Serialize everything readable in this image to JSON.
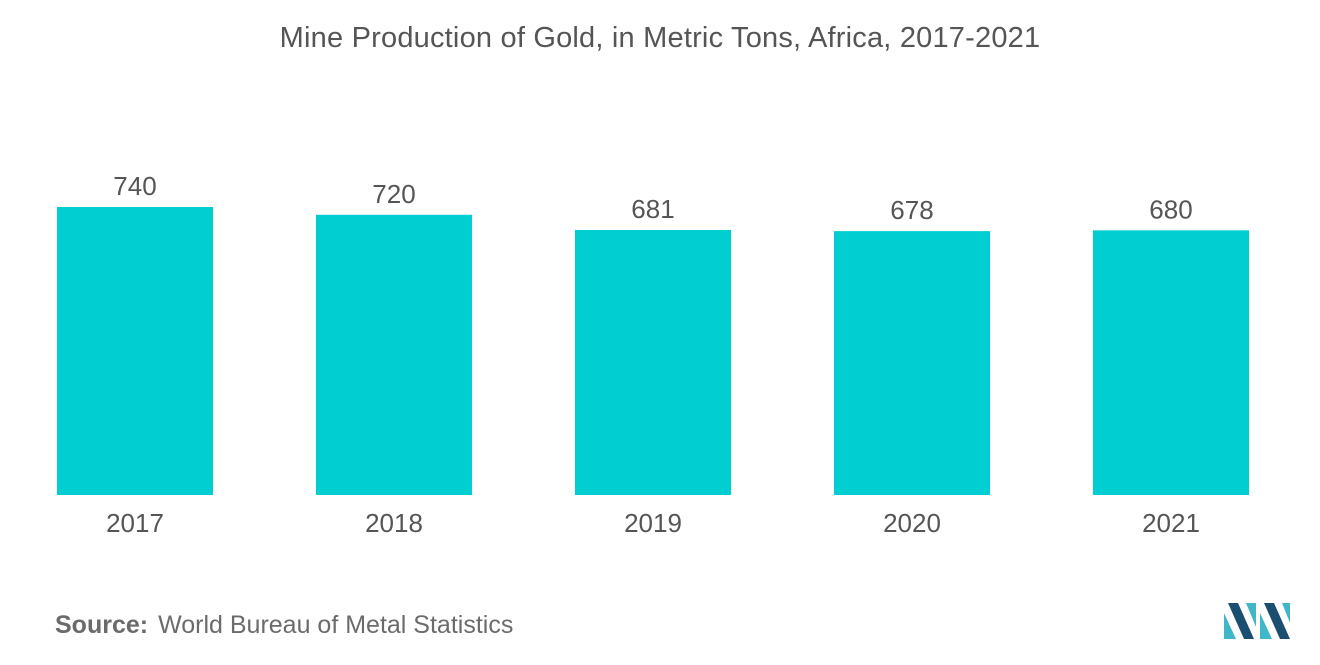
{
  "title": "Mine Production of Gold, in Metric Tons, Africa, 2017-2021",
  "source": {
    "label": "Source:",
    "text": "World Bureau of Metal Statistics"
  },
  "colors": {
    "bar": "#00CED1",
    "text": "#555555",
    "logo_dark": "#1B4F72",
    "logo_light": "#3FB7C9"
  },
  "logo": {
    "icon": "mordor-intelligence-logo-icon"
  },
  "chart_data": {
    "type": "bar",
    "categories": [
      "2017",
      "2018",
      "2019",
      "2020",
      "2021"
    ],
    "values": [
      740,
      720,
      681,
      678,
      680
    ],
    "data_labels": [
      "740",
      "720",
      "681",
      "678",
      "680"
    ],
    "title": "Mine Production of Gold, in Metric Tons, Africa, 2017-2021",
    "xlabel": "",
    "ylabel": "",
    "ylim": [
      0,
      740
    ],
    "grid": false,
    "legend": "none"
  }
}
